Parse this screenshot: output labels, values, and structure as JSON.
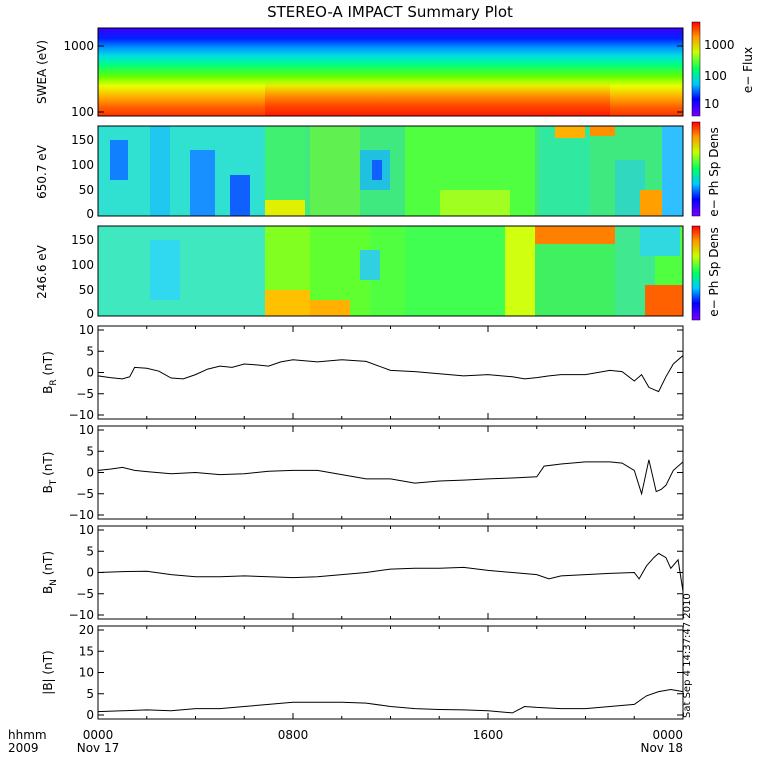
{
  "title": "STEREO-A IMPACT Summary Plot",
  "x_axis": {
    "row_label": "hhmm",
    "year_label": "2009",
    "ticks": [
      {
        "label": "0000",
        "sublabel": "Nov 17",
        "hour": 0
      },
      {
        "label": "0800",
        "sublabel": "",
        "hour": 8
      },
      {
        "label": "1600",
        "sublabel": "",
        "hour": 16
      },
      {
        "label": "0000",
        "sublabel": "Nov 18",
        "hour": 24
      }
    ]
  },
  "timestamp": "Sat Sep  4 14:37:47 2010",
  "colors": {
    "line": "#000000",
    "frame": "#000000"
  },
  "spectrograms": [
    {
      "id": "swea",
      "ylabel": "SWEA (eV)",
      "yticks": [
        "1000",
        "100"
      ],
      "colorbar_label": "e− Flux",
      "colorbar_ticks": [
        "1000",
        "100",
        "10"
      ],
      "log_y": true
    },
    {
      "id": "pad650",
      "ylabel": "650.7 eV",
      "yticks": [
        "150",
        "100",
        "50",
        "0"
      ],
      "colorbar_label": "e− Ph Sp Dens",
      "colorbar_ticks": []
    },
    {
      "id": "pad246",
      "ylabel": "246.6 eV",
      "yticks": [
        "150",
        "100",
        "50",
        "0"
      ],
      "colorbar_label": "e− Ph Sp Dens",
      "colorbar_ticks": []
    }
  ],
  "chart_data": [
    {
      "type": "heatmap",
      "name": "SWEA electron flux spectrogram",
      "ylabel": "SWEA (eV)",
      "y_scale": "log",
      "ylim": [
        90,
        2000
      ],
      "colorbar": {
        "label": "e− Flux",
        "scale": "log",
        "ticks": [
          10,
          100,
          1000
        ]
      },
      "description": "Flux decreases with energy; a step increase near 07:30 persisting until ~23:00."
    },
    {
      "type": "heatmap",
      "name": "Pitch angle distribution 650.7 eV",
      "ylabel": "650.7 eV",
      "ylim": [
        0,
        180
      ],
      "yticks": [
        0,
        50,
        100,
        150
      ],
      "colorbar": {
        "label": "e− Ph Sp Dens"
      }
    },
    {
      "type": "heatmap",
      "name": "Pitch angle distribution 246.6 eV",
      "ylabel": "246.6 eV",
      "ylim": [
        0,
        180
      ],
      "yticks": [
        0,
        50,
        100,
        150
      ],
      "colorbar": {
        "label": "e− Ph Sp Dens"
      }
    },
    {
      "type": "line",
      "ylabel": "B_R (nT)",
      "ylim": [
        -10,
        10
      ],
      "yticks": [
        -10,
        -5,
        0,
        5,
        10
      ],
      "x": [
        0,
        0.5,
        1,
        1.3,
        1.5,
        2,
        2.5,
        3,
        3.5,
        4,
        4.5,
        5,
        5.5,
        6,
        6.5,
        7,
        7.5,
        8,
        9,
        10,
        11,
        12,
        13,
        14,
        15,
        16,
        17,
        17.5,
        18,
        18.5,
        19,
        20,
        21,
        21.5,
        22,
        22.3,
        22.6,
        23,
        23.3,
        23.6,
        24
      ],
      "y": [
        -0.8,
        -1.2,
        -1.5,
        -1.0,
        1.2,
        1.0,
        0.3,
        -1.3,
        -1.5,
        -0.5,
        0.8,
        1.5,
        1.2,
        2.0,
        1.8,
        1.5,
        2.5,
        3.0,
        2.5,
        3.0,
        2.6,
        0.5,
        0.2,
        -0.3,
        -0.8,
        -0.5,
        -1.0,
        -1.5,
        -1.2,
        -0.8,
        -0.5,
        -0.5,
        0.5,
        0.2,
        -2.0,
        -0.5,
        -3.5,
        -4.5,
        -1.0,
        2.0,
        4.0
      ]
    },
    {
      "type": "line",
      "ylabel": "B_T (nT)",
      "ylim": [
        -10,
        10
      ],
      "yticks": [
        -10,
        -5,
        0,
        5,
        10
      ],
      "x": [
        0,
        0.5,
        1,
        1.5,
        2,
        3,
        4,
        5,
        6,
        7,
        8,
        9,
        10,
        11,
        12,
        13,
        14,
        15,
        16,
        17,
        18,
        18.3,
        19,
        20,
        21,
        21.5,
        22,
        22.3,
        22.6,
        22.9,
        23.1,
        23.3,
        23.6,
        24
      ],
      "y": [
        0.5,
        0.8,
        1.2,
        0.5,
        0.2,
        -0.3,
        0.0,
        -0.5,
        -0.3,
        0.3,
        0.5,
        0.5,
        -0.5,
        -1.5,
        -1.5,
        -2.5,
        -2.0,
        -1.8,
        -1.5,
        -1.3,
        -1.0,
        1.5,
        2.0,
        2.5,
        2.5,
        2.2,
        0.5,
        -5.0,
        3.0,
        -4.5,
        -4.0,
        -3.0,
        0.5,
        2.5
      ]
    },
    {
      "type": "line",
      "ylabel": "B_N (nT)",
      "ylim": [
        -10,
        10
      ],
      "yticks": [
        -10,
        -5,
        0,
        5,
        10
      ],
      "x": [
        0,
        1,
        2,
        3,
        4,
        5,
        6,
        7,
        8,
        9,
        10,
        11,
        12,
        13,
        14,
        15,
        16,
        17,
        18,
        18.5,
        19,
        20,
        21,
        22,
        22.2,
        22.5,
        22.8,
        23,
        23.3,
        23.5,
        23.8,
        24
      ],
      "y": [
        0.0,
        0.2,
        0.3,
        -0.5,
        -1.0,
        -1.0,
        -0.8,
        -1.0,
        -1.2,
        -1.0,
        -0.5,
        0.0,
        0.8,
        1.0,
        1.0,
        1.2,
        0.5,
        0.0,
        -0.5,
        -1.5,
        -0.8,
        -0.5,
        -0.2,
        0.0,
        -1.5,
        1.5,
        3.5,
        4.5,
        3.5,
        1.0,
        3.0,
        -4.5
      ]
    },
    {
      "type": "line",
      "ylabel": "|B| (nT)",
      "ylim": [
        0,
        20
      ],
      "yticks": [
        0,
        5,
        10,
        15,
        20
      ],
      "x": [
        0,
        1,
        2,
        3,
        4,
        5,
        6,
        7,
        8,
        9,
        10,
        11,
        12,
        13,
        14,
        15,
        16,
        17,
        17.5,
        18,
        19,
        20,
        21,
        22,
        22.5,
        23,
        23.5,
        24
      ],
      "y": [
        0.8,
        1.0,
        1.2,
        1.0,
        1.5,
        1.5,
        2.0,
        2.5,
        3.0,
        3.0,
        3.0,
        2.8,
        2.0,
        1.5,
        1.3,
        1.2,
        1.0,
        0.5,
        2.0,
        1.8,
        1.5,
        1.5,
        2.0,
        2.5,
        4.5,
        5.5,
        6.0,
        5.5
      ]
    }
  ],
  "line_panels": [
    {
      "ylabel_main": "B",
      "ylabel_sub": "R",
      "ylabel_unit": " (nT)",
      "yticks": [
        "10",
        "5",
        "0",
        "−5",
        "−10"
      ]
    },
    {
      "ylabel_main": "B",
      "ylabel_sub": "T",
      "ylabel_unit": " (nT)",
      "yticks": [
        "10",
        "5",
        "0",
        "−5",
        "−10"
      ]
    },
    {
      "ylabel_main": "B",
      "ylabel_sub": "N",
      "ylabel_unit": " (nT)",
      "yticks": [
        "10",
        "5",
        "0",
        "−5",
        "−10"
      ]
    },
    {
      "ylabel_main": "|B|",
      "ylabel_sub": "",
      "ylabel_unit": " (nT)",
      "yticks": [
        "20",
        "15",
        "10",
        "5",
        "0"
      ]
    }
  ]
}
